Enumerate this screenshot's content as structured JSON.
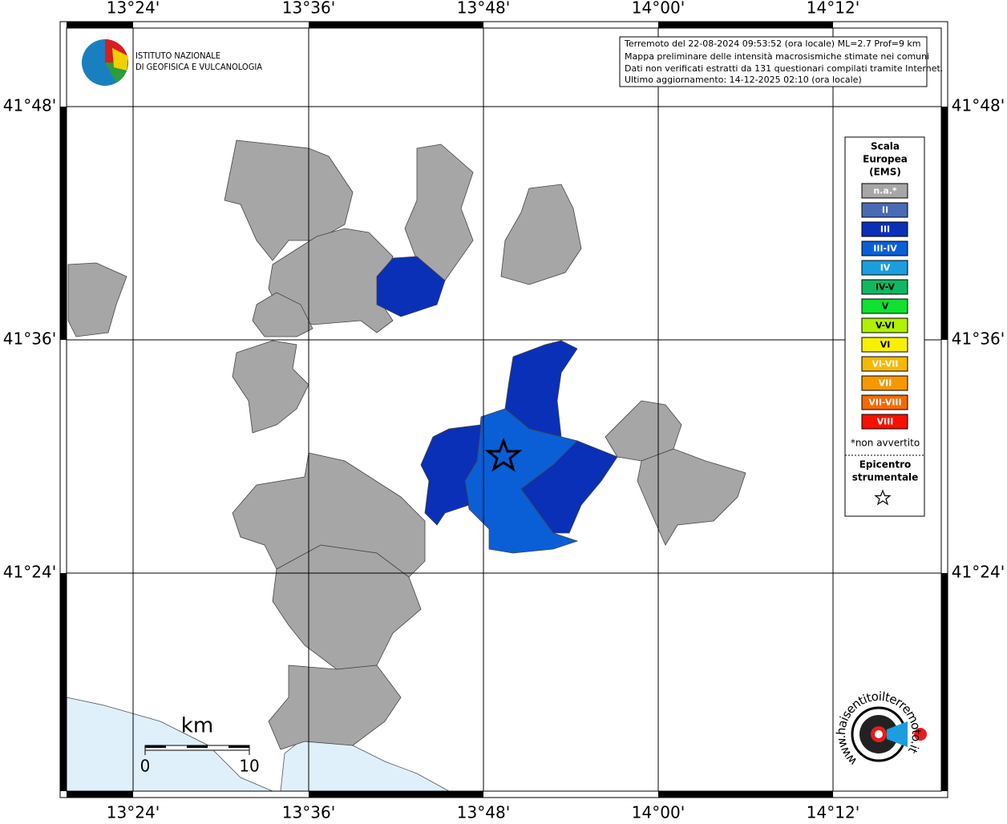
{
  "map": {
    "lon_labels": [
      "13°24'",
      "13°36'",
      "13°48'",
      "14°00'",
      "14°12'"
    ],
    "lat_labels": [
      "41°48'",
      "41°36'",
      "41°24'"
    ],
    "institute": [
      "ISTITUTO NAZIONALE",
      "DI GEOFISICA E VULCANOLOGIA"
    ],
    "info": [
      "Terremoto del 22-08-2024 09:53:52 (ora locale) ML=2.7 Prof=9 km",
      "Mappa preliminare delle intensità macrosismiche stimate nei comuni",
      "Dati non verificati estratti da 131 questionari compilati tramite Internet.",
      "Ultimo aggiornamento: 14-12-2025 02:10 (ora locale)"
    ],
    "legend": {
      "title": [
        "Scala",
        "Europea",
        "(EMS)"
      ],
      "items": [
        {
          "label": "n.a.*",
          "color": "#a6a6a6"
        },
        {
          "label": "II",
          "color": "#4a6ab5"
        },
        {
          "label": "III",
          "color": "#0a30b8"
        },
        {
          "label": "III-IV",
          "color": "#0a5fd6"
        },
        {
          "label": "IV",
          "color": "#1a9ee0"
        },
        {
          "label": "IV-V",
          "color": "#10b860"
        },
        {
          "label": "V",
          "color": "#10e030"
        },
        {
          "label": "V-VI",
          "color": "#b0f000"
        },
        {
          "label": "VI",
          "color": "#f8f000"
        },
        {
          "label": "VI-VII",
          "color": "#f8b800"
        },
        {
          "label": "VII",
          "color": "#f89800"
        },
        {
          "label": "VII-VIII",
          "color": "#f86800"
        },
        {
          "label": "VIII",
          "color": "#f81000"
        }
      ],
      "note": "*non avvertito",
      "epicenter": [
        "Epicentro",
        "strumentale"
      ]
    },
    "scale": {
      "unit": "km",
      "ticks": [
        "0",
        "10"
      ]
    },
    "site": "www.haisentitoilterremoto.it"
  }
}
